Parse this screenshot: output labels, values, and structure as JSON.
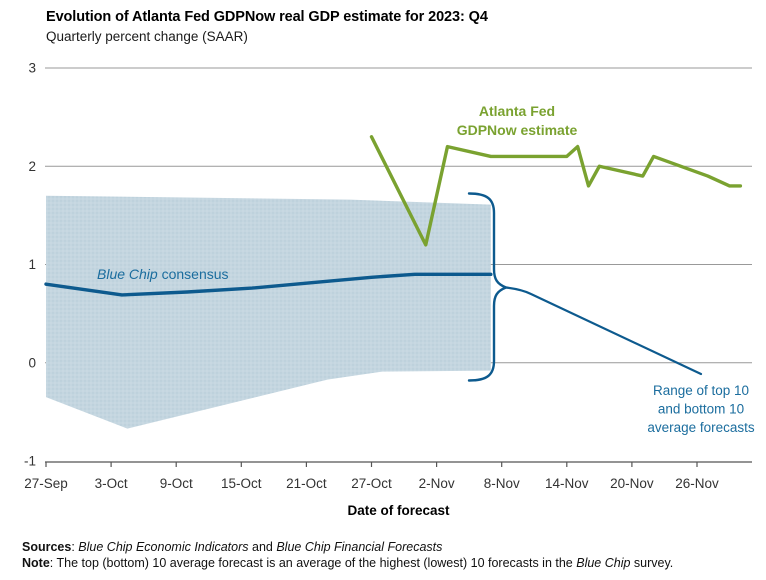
{
  "header": {
    "title": "Evolution of Atlanta Fed GDPNow real GDP estimate for 2023: Q4",
    "subtitle": "Quarterly percent change (SAAR)"
  },
  "chart_data": {
    "type": "line",
    "title": "Evolution of Atlanta Fed GDPNow real GDP estimate for 2023: Q4",
    "subtitle": "Quarterly percent change (SAAR)",
    "xlabel": "Date of forecast",
    "ylabel": "Quarterly percent change (SAAR)",
    "ylim": [
      -1,
      3
    ],
    "yticks": [
      -1,
      0,
      1,
      2,
      3
    ],
    "grid": "horizontal gridlines at 0,1,2,3",
    "x_unit": "day = days since 27-Sep-2023",
    "xticks": [
      {
        "day": 0,
        "label": "27-Sep"
      },
      {
        "day": 6,
        "label": "3-Oct"
      },
      {
        "day": 12,
        "label": "9-Oct"
      },
      {
        "day": 18,
        "label": "15-Oct"
      },
      {
        "day": 24,
        "label": "21-Oct"
      },
      {
        "day": 30,
        "label": "27-Oct"
      },
      {
        "day": 36,
        "label": "2-Nov"
      },
      {
        "day": 42,
        "label": "8-Nov"
      },
      {
        "day": 48,
        "label": "14-Nov"
      },
      {
        "day": 54,
        "label": "20-Nov"
      },
      {
        "day": 60,
        "label": "26-Nov"
      }
    ],
    "series": [
      {
        "name": "Atlanta Fed GDPNow estimate",
        "color": "#7aa230",
        "points": [
          {
            "date": "27-Oct",
            "day": 30,
            "value": 2.3
          },
          {
            "date": "1-Nov",
            "day": 35,
            "value": 1.2
          },
          {
            "date": "3-Nov",
            "day": 37,
            "value": 2.2
          },
          {
            "date": "8-Nov",
            "day": 41,
            "value": 2.1
          },
          {
            "date": "14-Nov",
            "day": 48,
            "value": 2.1
          },
          {
            "date": "15-Nov",
            "day": 49,
            "value": 2.2
          },
          {
            "date": "16-Nov",
            "day": 50,
            "value": 1.8
          },
          {
            "date": "17-Nov",
            "day": 51,
            "value": 2.0
          },
          {
            "date": "21-Nov",
            "day": 55,
            "value": 1.9
          },
          {
            "date": "22-Nov",
            "day": 56,
            "value": 2.1
          },
          {
            "date": "27-Nov",
            "day": 61,
            "value": 1.9
          },
          {
            "date": "29-Nov",
            "day": 63,
            "value": 1.8
          },
          {
            "date": "30-Nov",
            "day": 64,
            "value": 1.8
          }
        ]
      },
      {
        "name": "Blue Chip consensus",
        "color": "#0d5a8e",
        "points": [
          {
            "date": "27-Sep",
            "day": 0,
            "value": 0.8
          },
          {
            "date": "4-Oct",
            "day": 7,
            "value": 0.69
          },
          {
            "date": "10-Oct",
            "day": 13,
            "value": 0.72
          },
          {
            "date": "16-Oct",
            "day": 19,
            "value": 0.76
          },
          {
            "date": "22-Oct",
            "day": 25,
            "value": 0.82
          },
          {
            "date": "27-Oct",
            "day": 30,
            "value": 0.87
          },
          {
            "date": "1-Nov",
            "day": 34,
            "value": 0.9
          },
          {
            "date": "7-Nov",
            "day": 41,
            "value": 0.9
          }
        ]
      }
    ],
    "band": {
      "name": "Range of top 10 and bottom 10 average forecasts",
      "fill_color": "#c4d6e0",
      "top": [
        {
          "date": "27-Sep",
          "day": 0,
          "value": 1.7
        },
        {
          "date": "25-Oct",
          "day": 28,
          "value": 1.66
        },
        {
          "date": "7-Nov",
          "day": 41,
          "value": 1.61
        }
      ],
      "bottom": [
        {
          "date": "27-Sep",
          "day": 0,
          "value": -0.35
        },
        {
          "date": "4-Oct",
          "day": 7.5,
          "value": -0.67
        },
        {
          "date": "23-Oct",
          "day": 26,
          "value": -0.17
        },
        {
          "date": "28-Oct",
          "day": 31,
          "value": -0.09
        },
        {
          "date": "7-Nov",
          "day": 41,
          "value": -0.08
        }
      ]
    },
    "annotations": {
      "gdpnow_label": {
        "lines": [
          "Atlanta Fed",
          "GDPNow estimate"
        ],
        "color": "#7aa230"
      },
      "consensus_label": {
        "italic_part": "Blue Chip",
        "normal_part": " consensus",
        "color": "#1b6d9e"
      },
      "range_label": {
        "lines": [
          "Range of top 10",
          "and bottom 10",
          "average forecasts"
        ],
        "color": "#1b6d9e"
      },
      "bracket_color": "#0d5a8e"
    },
    "legend_position": "direct labels on chart"
  },
  "footer": {
    "sources_segments": [
      {
        "t": "Sources",
        "s": "bold"
      },
      {
        "t": ": ",
        "s": "normal"
      },
      {
        "t": "Blue Chip Economic Indicators",
        "s": "italic"
      },
      {
        "t": " and ",
        "s": "normal"
      },
      {
        "t": "Blue Chip Financial Forecasts",
        "s": "italic"
      }
    ],
    "note_segments": [
      {
        "t": "Note",
        "s": "bold"
      },
      {
        "t": ": The top (bottom) 10 average forecast is an average of the highest (lowest) 10 forecasts in the ",
        "s": "normal"
      },
      {
        "t": "Blue Chip",
        "s": "italic"
      },
      {
        "t": " survey.",
        "s": "normal"
      }
    ]
  }
}
